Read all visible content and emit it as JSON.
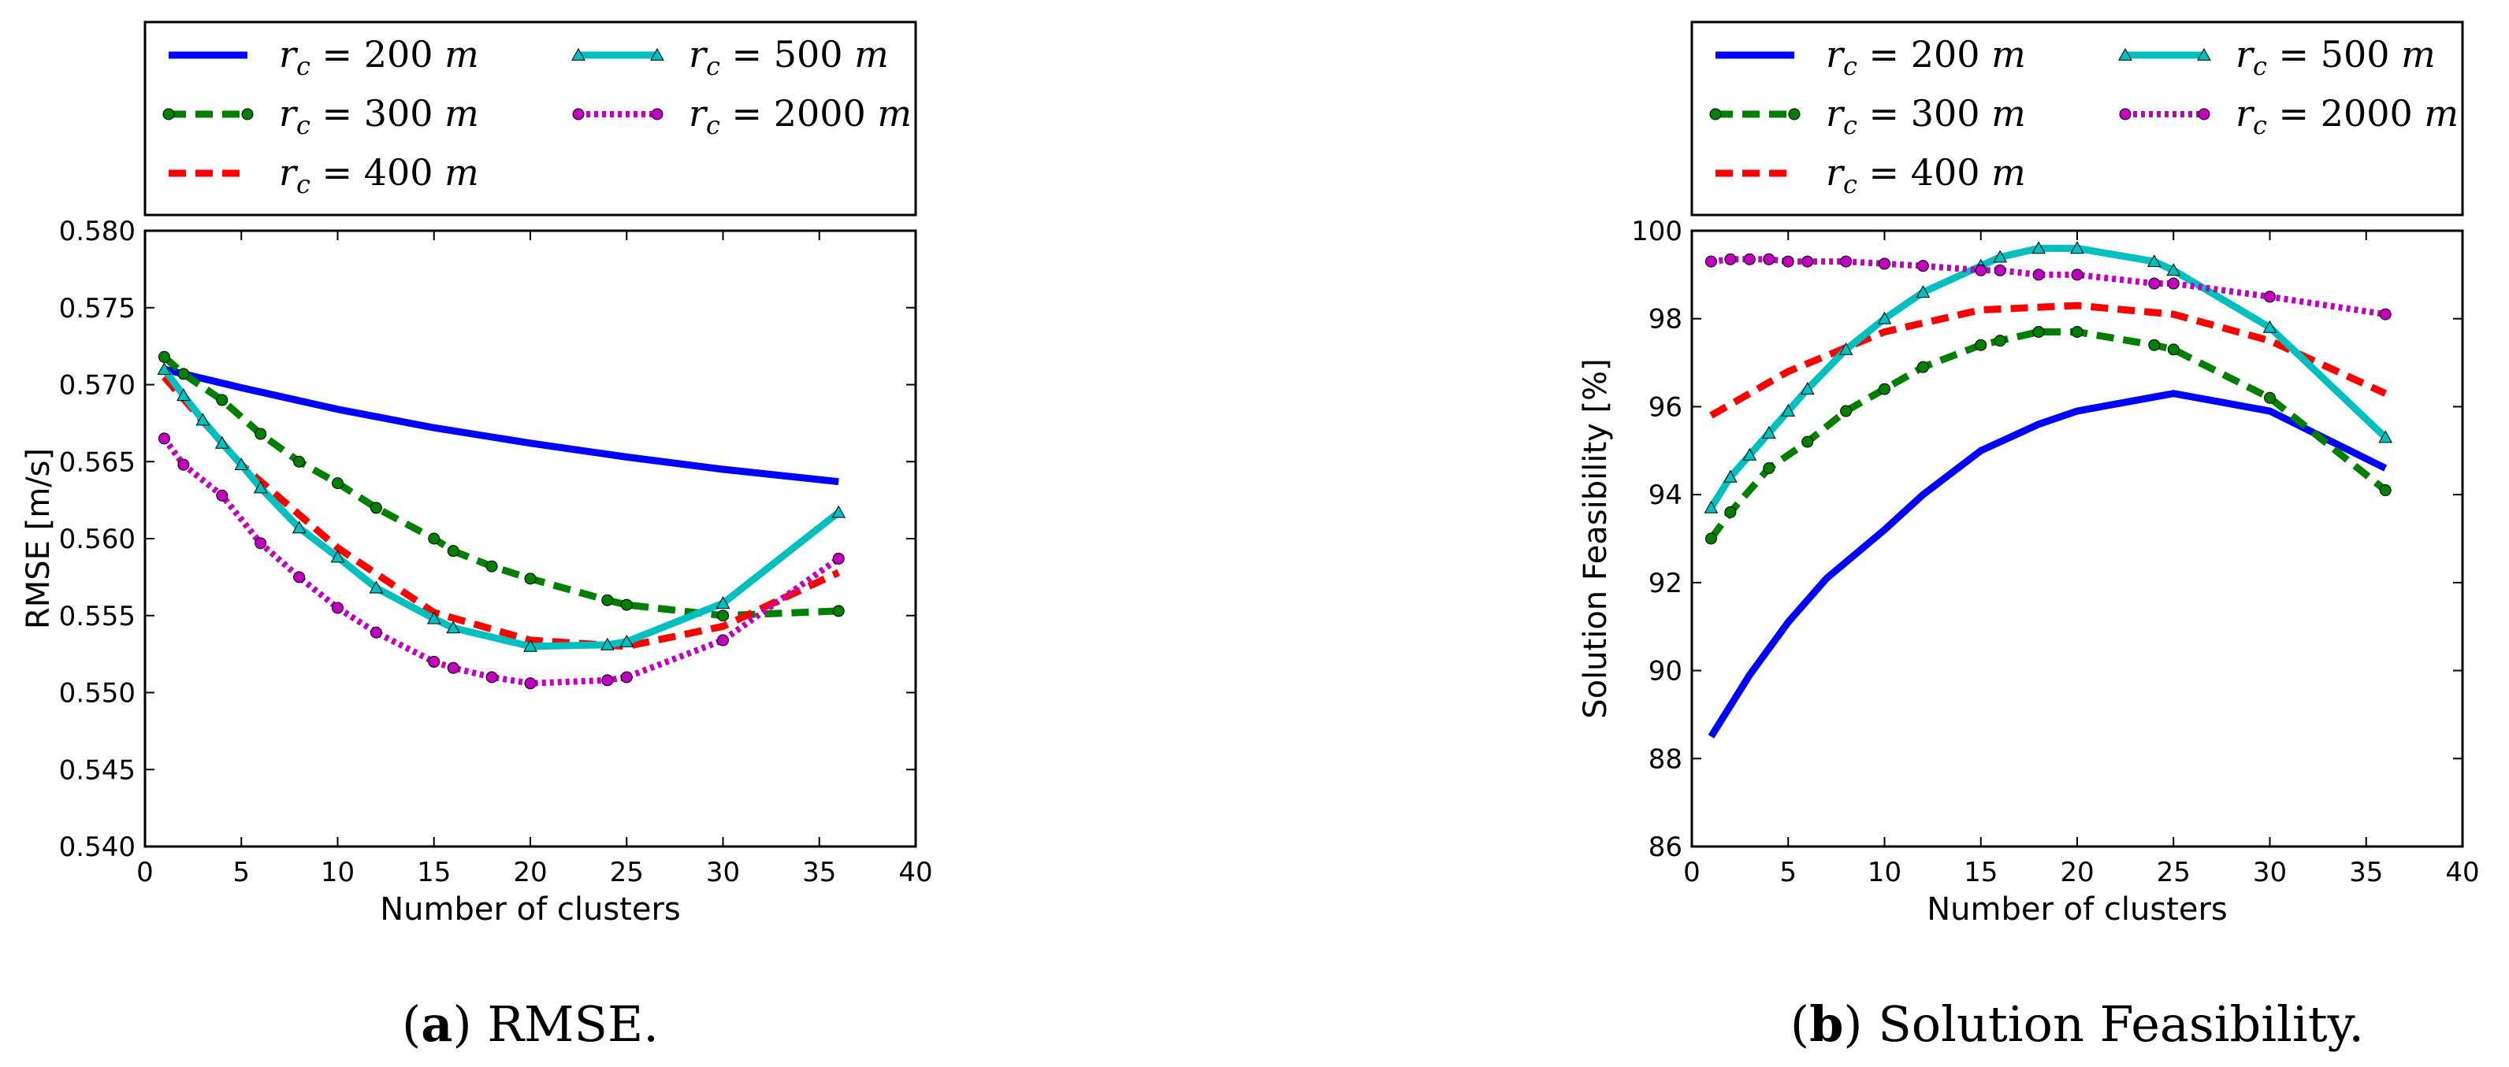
{
  "chart_data": [
    {
      "type": "line",
      "caption": {
        "letter": "a",
        "text": "RMSE."
      },
      "xlabel": "Number of clusters",
      "ylabel": "RMSE [m/s]",
      "xlim": [
        0,
        40
      ],
      "ylim": [
        0.54,
        0.58
      ],
      "xticks": [
        "0",
        "5",
        "10",
        "15",
        "20",
        "25",
        "30",
        "35",
        "40"
      ],
      "yticks": [
        "0.540",
        "0.545",
        "0.550",
        "0.555",
        "0.560",
        "0.565",
        "0.570",
        "0.575",
        "0.580"
      ],
      "legend_position": "above",
      "series": [
        {
          "name": "r_c = 200 m",
          "label_main": "r",
          "label_sub": "c",
          "label_rest": " = 200 m",
          "color": "#0000ff",
          "style": "solid",
          "marker": "none",
          "x": [
            1,
            5,
            10,
            15,
            20,
            25,
            30,
            36
          ],
          "y": [
            0.571,
            0.5698,
            0.5684,
            0.5672,
            0.5662,
            0.5653,
            0.5645,
            0.5637
          ]
        },
        {
          "name": "r_c = 300 m",
          "label_main": "r",
          "label_sub": "c",
          "label_rest": " = 300 m",
          "color": "#007f00",
          "style": "dashed",
          "marker": "circle",
          "x": [
            1,
            2,
            4,
            6,
            8,
            10,
            12,
            15,
            16,
            18,
            20,
            24,
            25,
            30,
            36
          ],
          "y": [
            0.5718,
            0.5707,
            0.569,
            0.5668,
            0.565,
            0.5636,
            0.562,
            0.56,
            0.5592,
            0.5582,
            0.5574,
            0.556,
            0.5557,
            0.555,
            0.5553
          ]
        },
        {
          "name": "r_c = 400 m",
          "label_main": "r",
          "label_sub": "c",
          "label_rest": " = 400 m",
          "color": "#ff0000",
          "style": "dashed",
          "marker": "none",
          "x": [
            1,
            5,
            10,
            15,
            20,
            25,
            30,
            36
          ],
          "y": [
            0.5705,
            0.5648,
            0.5594,
            0.5552,
            0.5534,
            0.553,
            0.5543,
            0.5578
          ]
        },
        {
          "name": "r_c = 500 m",
          "label_main": "r",
          "label_sub": "c",
          "label_rest": " = 500 m",
          "color": "#00bfbf",
          "style": "solid",
          "marker": "triangle",
          "x": [
            1,
            2,
            3,
            4,
            5,
            6,
            8,
            10,
            12,
            15,
            16,
            20,
            24,
            25,
            30,
            36
          ],
          "y": [
            0.571,
            0.5693,
            0.5677,
            0.5662,
            0.5648,
            0.5633,
            0.5607,
            0.5588,
            0.5568,
            0.5548,
            0.5542,
            0.553,
            0.5531,
            0.5533,
            0.5558,
            0.5617
          ]
        },
        {
          "name": "r_c = 2000 m",
          "label_main": "r",
          "label_sub": "c",
          "label_rest": " = 2000 m",
          "color": "#bf00bf",
          "style": "dotted",
          "marker": "circle",
          "x": [
            1,
            2,
            4,
            6,
            8,
            10,
            12,
            15,
            16,
            18,
            20,
            24,
            25,
            30,
            36
          ],
          "y": [
            0.5665,
            0.5648,
            0.5628,
            0.5597,
            0.5575,
            0.5555,
            0.5539,
            0.552,
            0.5516,
            0.551,
            0.5506,
            0.5508,
            0.551,
            0.5534,
            0.5587
          ]
        }
      ]
    },
    {
      "type": "line",
      "caption": {
        "letter": "b",
        "text": "Solution Feasibility."
      },
      "xlabel": "Number of clusters",
      "ylabel": "Solution Feasibility [%]",
      "xlim": [
        0,
        40
      ],
      "ylim": [
        86,
        100
      ],
      "xticks": [
        "0",
        "5",
        "10",
        "15",
        "20",
        "25",
        "30",
        "35",
        "40"
      ],
      "yticks": [
        "86",
        "88",
        "90",
        "92",
        "94",
        "96",
        "98",
        "100"
      ],
      "legend_position": "above",
      "series": [
        {
          "name": "r_c = 200 m",
          "label_main": "r",
          "label_sub": "c",
          "label_rest": " = 200 m",
          "color": "#0000ff",
          "style": "solid",
          "marker": "none",
          "x": [
            1,
            3,
            5,
            7,
            10,
            12,
            15,
            18,
            20,
            25,
            30,
            36
          ],
          "y": [
            88.5,
            89.9,
            91.1,
            92.1,
            93.2,
            94.0,
            95.0,
            95.6,
            95.9,
            96.3,
            95.9,
            94.6
          ]
        },
        {
          "name": "r_c = 300 m",
          "label_main": "r",
          "label_sub": "c",
          "label_rest": " = 300 m",
          "color": "#007f00",
          "style": "dashed",
          "marker": "circle",
          "x": [
            1,
            2,
            4,
            6,
            8,
            10,
            12,
            15,
            16,
            18,
            20,
            24,
            25,
            30,
            36
          ],
          "y": [
            93.0,
            93.6,
            94.6,
            95.2,
            95.9,
            96.4,
            96.9,
            97.4,
            97.5,
            97.7,
            97.7,
            97.4,
            97.3,
            96.2,
            94.1
          ]
        },
        {
          "name": "r_c = 400 m",
          "label_main": "r",
          "label_sub": "c",
          "label_rest": " = 400 m",
          "color": "#ff0000",
          "style": "dashed",
          "marker": "none",
          "x": [
            1,
            5,
            10,
            15,
            20,
            25,
            30,
            36
          ],
          "y": [
            95.8,
            96.8,
            97.7,
            98.2,
            98.3,
            98.1,
            97.5,
            96.3
          ]
        },
        {
          "name": "r_c = 500 m",
          "label_main": "r",
          "label_sub": "c",
          "label_rest": " = 500 m",
          "color": "#00bfbf",
          "style": "solid",
          "marker": "triangle",
          "x": [
            1,
            2,
            3,
            4,
            5,
            6,
            8,
            10,
            12,
            15,
            16,
            18,
            20,
            24,
            25,
            30,
            36
          ],
          "y": [
            93.7,
            94.4,
            94.9,
            95.4,
            95.9,
            96.4,
            97.3,
            98.0,
            98.6,
            99.2,
            99.4,
            99.6,
            99.6,
            99.3,
            99.1,
            97.8,
            95.3
          ]
        },
        {
          "name": "r_c = 2000 m",
          "label_main": "r",
          "label_sub": "c",
          "label_rest": " = 2000 m",
          "color": "#bf00bf",
          "style": "dotted",
          "marker": "circle",
          "x": [
            1,
            2,
            3,
            4,
            5,
            6,
            8,
            10,
            12,
            15,
            16,
            18,
            20,
            24,
            25,
            30,
            36
          ],
          "y": [
            99.3,
            99.35,
            99.35,
            99.35,
            99.3,
            99.3,
            99.3,
            99.25,
            99.2,
            99.1,
            99.1,
            99.0,
            99.0,
            98.8,
            98.8,
            98.5,
            98.1
          ]
        }
      ]
    }
  ]
}
